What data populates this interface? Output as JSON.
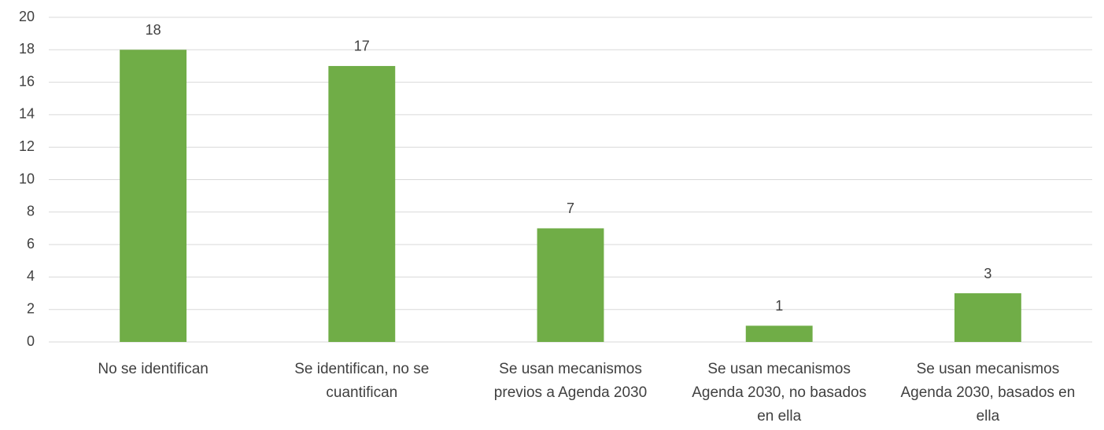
{
  "chart_data": {
    "type": "bar",
    "categories": [
      "No se identifican",
      "Se identifican, no se cuantifican",
      "Se usan mecanismos previos a Agenda 2030",
      "Se usan mecanismos Agenda 2030, no basados en ella",
      "Se usan mecanismos Agenda 2030, basados en ella"
    ],
    "values": [
      18,
      17,
      7,
      1,
      3
    ],
    "color": "#70ad47",
    "ylim": [
      0,
      20
    ],
    "yticks": [
      0,
      2,
      4,
      6,
      8,
      10,
      12,
      14,
      16,
      18,
      20
    ],
    "grid": true
  }
}
